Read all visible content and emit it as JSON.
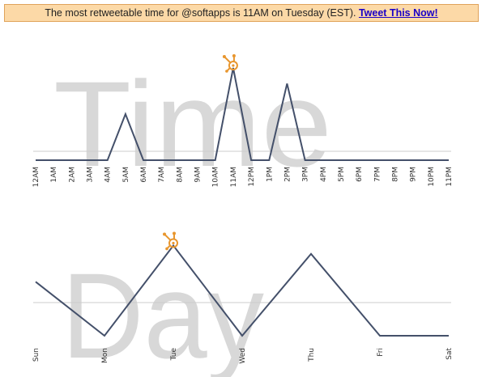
{
  "banner": {
    "text": "The most retweetable time for @softapps is 11AM on Tuesday (EST).",
    "link_label": "Tweet This Now!"
  },
  "colors": {
    "line": "#44506a",
    "baseline": "#cccccc",
    "watermark": "#d8d8d8",
    "marker": "#e8962e",
    "banner_bg": "#fcd9a7",
    "banner_border": "#e0a35a",
    "link": "#1a00c8"
  },
  "chart_data": [
    {
      "type": "line",
      "watermark": "Time",
      "categories": [
        "12AM",
        "1AM",
        "2AM",
        "3AM",
        "4AM",
        "5AM",
        "6AM",
        "7AM",
        "8AM",
        "9AM",
        "10AM",
        "11AM",
        "12PM",
        "1PM",
        "2PM",
        "3PM",
        "4PM",
        "5PM",
        "6PM",
        "7PM",
        "8PM",
        "9PM",
        "10PM",
        "11PM"
      ],
      "values": [
        0,
        0,
        0,
        0,
        0,
        0.5,
        0,
        0,
        0,
        0,
        0,
        1,
        0,
        0,
        0.83,
        0,
        0,
        0,
        0,
        0,
        0,
        0,
        0,
        0
      ],
      "highlight_index": 11,
      "ylim": [
        0,
        1
      ]
    },
    {
      "type": "line",
      "watermark": "Day",
      "categories": [
        "Sun",
        "Mon",
        "Tue",
        "Wed",
        "Thu",
        "Fri",
        "Sat"
      ],
      "values": [
        0.58,
        0,
        0.97,
        0,
        0.88,
        0,
        0
      ],
      "highlight_index": 2,
      "ylim": [
        0,
        1
      ]
    }
  ]
}
